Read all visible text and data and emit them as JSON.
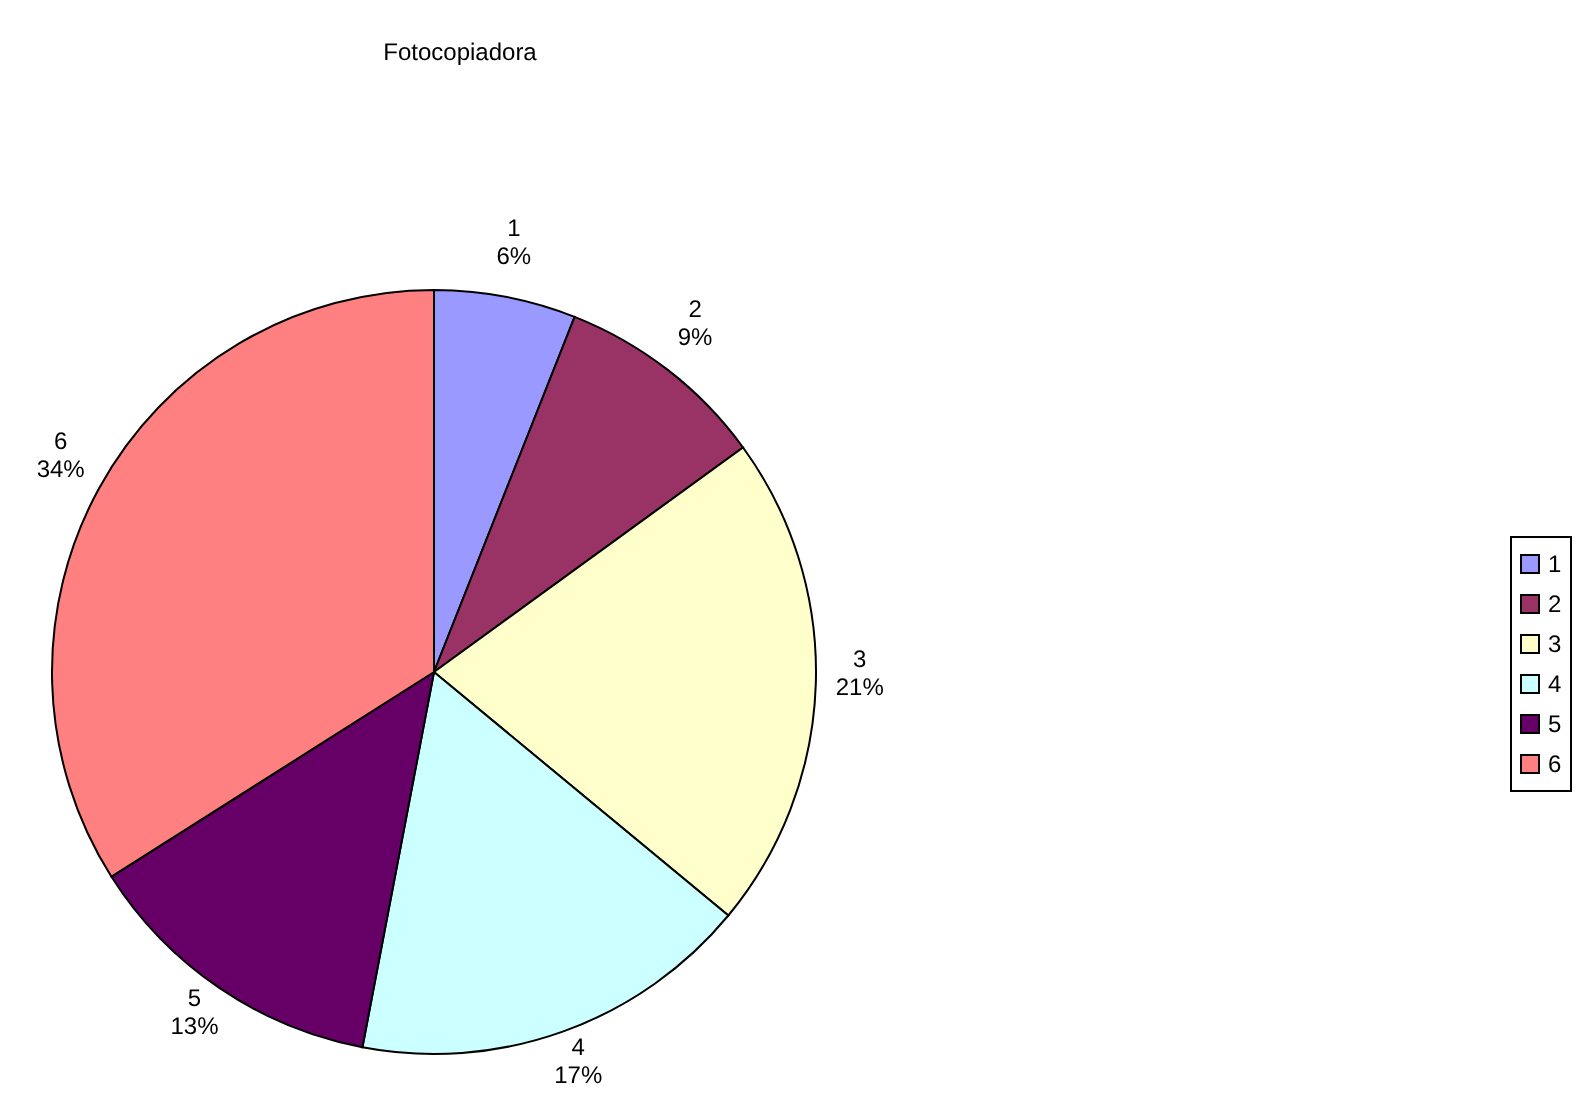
{
  "chart_data": {
    "type": "pie",
    "title": "Fotocopiadora",
    "categories": [
      "1",
      "2",
      "3",
      "4",
      "5",
      "6"
    ],
    "values": [
      6,
      9,
      21,
      17,
      13,
      34
    ],
    "value_labels": [
      "6%",
      "9%",
      "21%",
      "17%",
      "13%",
      "34%"
    ],
    "colors": [
      "#9999ff",
      "#993366",
      "#ffffcc",
      "#ccffff",
      "#660066",
      "#ff8080"
    ],
    "legend": "right"
  }
}
